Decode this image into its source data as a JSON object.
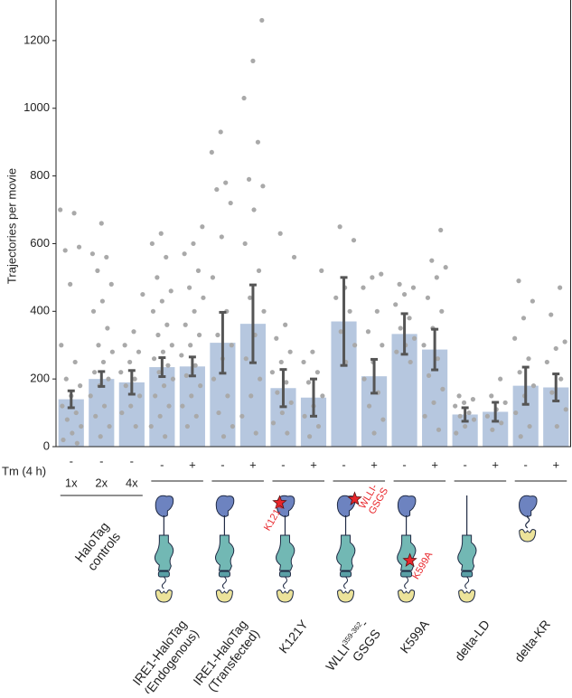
{
  "chart_data": {
    "type": "bar",
    "ylabel": "Trajectories per movie",
    "ylim": [
      0,
      1320
    ],
    "yticks": [
      0,
      200,
      400,
      600,
      800,
      1000,
      1200
    ],
    "color": "#b6c7df",
    "point_color": "#a9a9a9",
    "error_color": "#555555",
    "tm_label": "Tm (4 h)",
    "categories": [
      "-",
      "-",
      "-",
      "-",
      "+",
      "-",
      "+",
      "-",
      "+",
      "-",
      "+",
      "-",
      "+",
      "-",
      "+",
      "-",
      "+"
    ],
    "doses": [
      "1x",
      "2x",
      "4x"
    ],
    "values": [
      140,
      200,
      190,
      235,
      237,
      307,
      363,
      173,
      145,
      370,
      208,
      333,
      287,
      95,
      103,
      180,
      175
    ],
    "errors": [
      25,
      22,
      35,
      28,
      28,
      90,
      115,
      55,
      55,
      130,
      50,
      60,
      60,
      20,
      28,
      55,
      40
    ],
    "points": [
      [
        700,
        690,
        580,
        590,
        480,
        300,
        250,
        200,
        180,
        150,
        120,
        100,
        80,
        60,
        40,
        20,
        10
      ],
      [
        660,
        570,
        560,
        520,
        480,
        430,
        400,
        350,
        300,
        280,
        250,
        220,
        200,
        180,
        150,
        120,
        90,
        60,
        30
      ],
      [
        450,
        340,
        300,
        280,
        250,
        220,
        200,
        180,
        150,
        120,
        100,
        60
      ],
      [
        630,
        600,
        560,
        500,
        460,
        430,
        400,
        360,
        330,
        300,
        280,
        260,
        240,
        220,
        200,
        180,
        150,
        120,
        90,
        60,
        30
      ],
      [
        650,
        600,
        570,
        520,
        470,
        440,
        400,
        360,
        330,
        300,
        270,
        240,
        210,
        180,
        150,
        120,
        90,
        60
      ],
      [
        930,
        870,
        780,
        760,
        720,
        620,
        500,
        400,
        330,
        300,
        260,
        200,
        150,
        100,
        60,
        30
      ],
      [
        1260,
        1140,
        1030,
        900,
        790,
        770,
        700,
        600,
        520,
        440,
        400,
        330,
        260,
        200,
        150,
        90,
        40
      ],
      [
        630,
        560,
        360,
        320,
        280,
        250,
        220,
        190,
        160,
        130,
        100,
        70,
        40
      ],
      [
        520,
        280,
        250,
        220,
        190,
        150,
        120,
        90,
        60,
        30
      ],
      [
        650,
        610,
        470,
        440,
        400,
        340,
        300,
        250
      ],
      [
        510,
        500,
        470,
        400,
        340,
        300,
        250,
        200,
        160,
        120,
        80,
        40
      ],
      [
        480,
        470,
        450,
        420,
        380,
        350,
        320,
        300,
        280,
        250
      ],
      [
        640,
        550,
        530,
        500,
        440,
        400,
        350,
        300,
        260,
        210,
        170,
        130,
        90,
        50
      ],
      [
        150,
        140,
        130,
        120,
        100,
        90,
        80,
        60,
        40
      ],
      [
        200,
        150,
        130,
        110,
        90,
        70,
        50
      ],
      [
        490,
        430,
        380,
        320,
        260,
        220,
        180,
        150,
        100,
        60,
        30
      ],
      [
        470,
        390,
        310,
        290,
        250,
        200,
        160,
        110,
        60
      ]
    ],
    "groups": [
      {
        "lines": [
          [
            "HaloTag"
          ],
          [
            "controls"
          ]
        ]
      },
      {
        "lines": [
          [
            "IRE1-HaloTag"
          ],
          [
            "(Endogenous)"
          ]
        ]
      },
      {
        "lines": [
          [
            "IRE1-HaloTag"
          ],
          [
            "(Transfected)"
          ]
        ]
      },
      {
        "lines": [
          [
            "K121Y"
          ]
        ],
        "mutation": [
          "K121Y"
        ]
      },
      {
        "lines": [
          [
            "WLLI",
            "359-362",
            "-"
          ],
          [
            "GSGS"
          ]
        ],
        "mutation": [
          "WLLI-",
          "GSGS"
        ]
      },
      {
        "lines": [
          [
            "K599A"
          ]
        ],
        "mutation": [
          "K599A"
        ]
      },
      {
        "lines": [
          [
            "delta-LD"
          ]
        ]
      },
      {
        "lines": [
          [
            "delta-KR"
          ]
        ]
      }
    ]
  }
}
